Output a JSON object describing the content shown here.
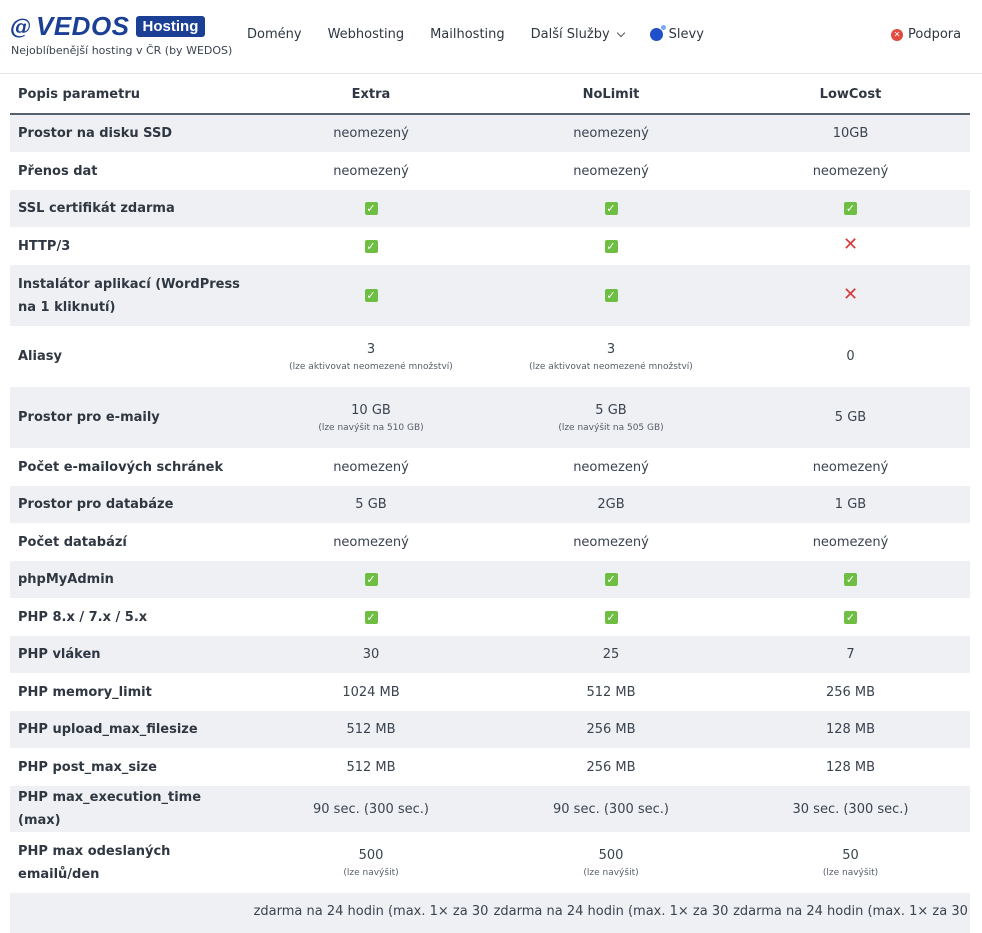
{
  "brand": {
    "logo_text": "VEDOS",
    "logo_badge": "Hosting",
    "tagline": "Nejoblíbenější hosting v ČR (by WEDOS)",
    "colors": {
      "brand_blue": "#1b3f95",
      "check_green": "#6fbe44",
      "cross_red": "#d93a3a"
    }
  },
  "nav": {
    "items": [
      "Domény",
      "Webhosting",
      "Mailhosting",
      "Další Služby",
      "Slevy"
    ],
    "support": "Podpora"
  },
  "table": {
    "headers": [
      "Popis parametru",
      "Extra",
      "NoLimit",
      "LowCost"
    ],
    "rows": [
      {
        "label": "Prostor na disku SSD",
        "cells": [
          {
            "v": "neomezený"
          },
          {
            "v": "neomezený"
          },
          {
            "v": "10GB"
          }
        ]
      },
      {
        "label": "Přenos dat",
        "cells": [
          {
            "v": "neomezený"
          },
          {
            "v": "neomezený"
          },
          {
            "v": "neomezený"
          }
        ]
      },
      {
        "label": "SSL certifikát zdarma",
        "cells": [
          {
            "icon": "check"
          },
          {
            "icon": "check"
          },
          {
            "icon": "check"
          }
        ]
      },
      {
        "label": "HTTP/3",
        "cells": [
          {
            "icon": "check"
          },
          {
            "icon": "check"
          },
          {
            "icon": "cross"
          }
        ]
      },
      {
        "label": "Instalátor aplikací (WordPress na 1 kliknutí)",
        "cells": [
          {
            "icon": "check"
          },
          {
            "icon": "check"
          },
          {
            "icon": "cross"
          }
        ]
      },
      {
        "label": "Aliasy",
        "cells": [
          {
            "v": "3",
            "sub": "(lze aktivovat neomezené množství)"
          },
          {
            "v": "3",
            "sub": "(lze aktivovat neomezené množství)"
          },
          {
            "v": "0"
          }
        ]
      },
      {
        "label": "Prostor pro e-maily",
        "cells": [
          {
            "v": "10 GB",
            "sub": "(lze navýšit na 510 GB)"
          },
          {
            "v": "5 GB",
            "sub": "(lze navýšit na 505 GB)"
          },
          {
            "v": "5 GB"
          }
        ]
      },
      {
        "label": "Počet e-mailových schránek",
        "cells": [
          {
            "v": "neomezený"
          },
          {
            "v": "neomezený"
          },
          {
            "v": "neomezený"
          }
        ]
      },
      {
        "label": "Prostor pro databáze",
        "cells": [
          {
            "v": "5 GB"
          },
          {
            "v": "2GB"
          },
          {
            "v": "1 GB"
          }
        ]
      },
      {
        "label": "Počet databází",
        "cells": [
          {
            "v": "neomezený"
          },
          {
            "v": "neomezený"
          },
          {
            "v": "neomezený"
          }
        ]
      },
      {
        "label": "phpMyAdmin",
        "cells": [
          {
            "icon": "check"
          },
          {
            "icon": "check"
          },
          {
            "icon": "check"
          }
        ]
      },
      {
        "label": "PHP 8.x / 7.x / 5.x",
        "cells": [
          {
            "icon": "check"
          },
          {
            "icon": "check"
          },
          {
            "icon": "check"
          }
        ]
      },
      {
        "label": "PHP vláken",
        "cells": [
          {
            "v": "30"
          },
          {
            "v": "25"
          },
          {
            "v": "7"
          }
        ]
      },
      {
        "label": "PHP memory_limit",
        "cells": [
          {
            "v": "1024 MB"
          },
          {
            "v": "512 MB"
          },
          {
            "v": "256 MB"
          }
        ]
      },
      {
        "label": "PHP upload_max_filesize",
        "cells": [
          {
            "v": "512 MB"
          },
          {
            "v": "256 MB"
          },
          {
            "v": "128 MB"
          }
        ]
      },
      {
        "label": "PHP post_max_size",
        "cells": [
          {
            "v": "512 MB"
          },
          {
            "v": "256 MB"
          },
          {
            "v": "128 MB"
          }
        ]
      },
      {
        "label": "PHP max_execution_time (max)",
        "cells": [
          {
            "v": "90 sec. (300 sec.)"
          },
          {
            "v": "90 sec. (300 sec.)"
          },
          {
            "v": "30 sec. (300 sec.)"
          }
        ]
      },
      {
        "label": "PHP max odeslaných emailů/den",
        "cells": [
          {
            "v": "500",
            "sub": "(lze navýšit)"
          },
          {
            "v": "500",
            "sub": "(lze navýšit)"
          },
          {
            "v": "50",
            "sub": "(lze navýšit)"
          }
        ]
      },
      {
        "label": "",
        "cells": [
          {
            "v": "zdarma na 24 hodin (max. 1× za 30"
          },
          {
            "v": "zdarma na 24 hodin (max. 1× za 30"
          },
          {
            "v": "zdarma na 24 hodin (max. 1× za 30"
          }
        ]
      }
    ]
  }
}
